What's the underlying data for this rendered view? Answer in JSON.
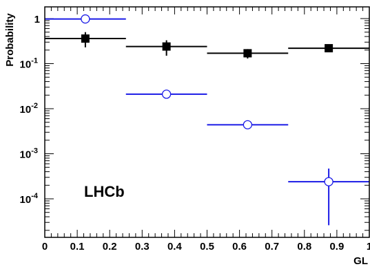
{
  "chart_data": {
    "type": "scatter",
    "title": "",
    "xlabel": "GL",
    "ylabel": "Probability",
    "xlim": [
      0,
      1
    ],
    "ylim": [
      1e-05,
      1.6
    ],
    "yscale": "log",
    "grid": false,
    "legend": "none",
    "annotation": "LHCb",
    "x_ticks": [
      "0",
      "0.1",
      "0.2",
      "0.3",
      "0.4",
      "0.5",
      "0.6",
      "0.7",
      "0.8",
      "0.9",
      "1"
    ],
    "y_ticks": [
      {
        "value": 1,
        "base": "1",
        "exp": ""
      },
      {
        "value": 0.1,
        "base": "10",
        "exp": "-1"
      },
      {
        "value": 0.01,
        "base": "10",
        "exp": "-2"
      },
      {
        "value": 0.001,
        "base": "10",
        "exp": "-3"
      },
      {
        "value": 0.0001,
        "base": "10",
        "exp": "-4"
      }
    ],
    "series": [
      {
        "marker": "filled-square",
        "color": "#000000",
        "points": [
          {
            "x": 0.125,
            "xlo": 0.0,
            "xhi": 0.25,
            "y": 0.36,
            "ylo": 0.23,
            "yhi": 0.5
          },
          {
            "x": 0.375,
            "xlo": 0.25,
            "xhi": 0.5,
            "y": 0.24,
            "ylo": 0.15,
            "yhi": 0.33
          },
          {
            "x": 0.625,
            "xlo": 0.5,
            "xhi": 0.75,
            "y": 0.17,
            "ylo": 0.13,
            "yhi": 0.21
          },
          {
            "x": 0.875,
            "xlo": 0.75,
            "xhi": 1.0,
            "y": 0.22,
            "ylo": 0.2,
            "yhi": 0.25
          }
        ]
      },
      {
        "marker": "open-circle",
        "color": "#1a1ae6",
        "points": [
          {
            "x": 0.125,
            "xlo": 0.0,
            "xhi": 0.25,
            "y": 0.98,
            "ylo": 0.97,
            "yhi": 0.99
          },
          {
            "x": 0.375,
            "xlo": 0.25,
            "xhi": 0.5,
            "y": 0.021,
            "ylo": 0.02,
            "yhi": 0.022
          },
          {
            "x": 0.625,
            "xlo": 0.5,
            "xhi": 0.75,
            "y": 0.0044,
            "ylo": 0.0038,
            "yhi": 0.005
          },
          {
            "x": 0.875,
            "xlo": 0.75,
            "xhi": 1.0,
            "y": 0.00024,
            "ylo": 2.6e-05,
            "yhi": 0.00047
          }
        ]
      }
    ]
  }
}
